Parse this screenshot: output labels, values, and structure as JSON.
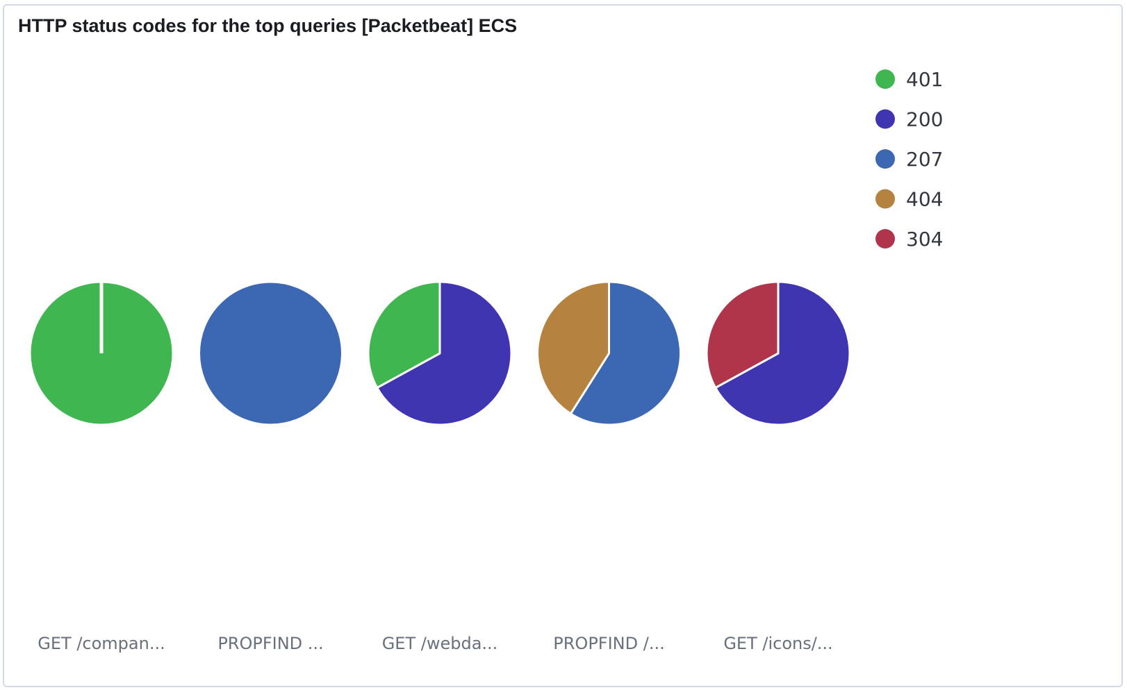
{
  "panel": {
    "title": "HTTP status codes for the top queries [Packetbeat] ECS"
  },
  "chart_data": {
    "type": "pie",
    "title": "HTTP status codes for the top queries [Packetbeat] ECS",
    "legend_position": "top-right",
    "legend": [
      {
        "label": "401",
        "color": "#3fb64f"
      },
      {
        "label": "200",
        "color": "#4035b0"
      },
      {
        "label": "207",
        "color": "#3c67b3"
      },
      {
        "label": "404",
        "color": "#b5823f"
      },
      {
        "label": "304",
        "color": "#b0354b"
      }
    ],
    "pies": [
      {
        "label": "GET /compan...",
        "slices": [
          {
            "status": "401",
            "value": 100
          }
        ]
      },
      {
        "label": "PROPFIND ...",
        "slices": [
          {
            "status": "207",
            "value": 100
          }
        ]
      },
      {
        "label": "GET /webda...",
        "slices": [
          {
            "status": "200",
            "value": 67
          },
          {
            "status": "401",
            "value": 33
          }
        ]
      },
      {
        "label": "PROPFIND /...",
        "slices": [
          {
            "status": "207",
            "value": 59
          },
          {
            "status": "404",
            "value": 41
          }
        ]
      },
      {
        "label": "GET /icons/...",
        "slices": [
          {
            "status": "200",
            "value": 67
          },
          {
            "status": "304",
            "value": 33
          }
        ]
      }
    ]
  }
}
